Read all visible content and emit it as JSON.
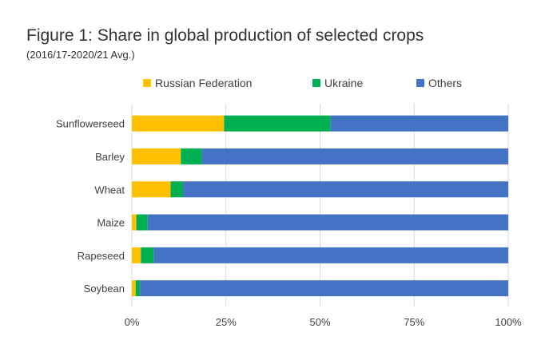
{
  "chart_data": {
    "type": "bar",
    "orientation": "horizontal",
    "stacked": true,
    "title": "Figure 1: Share in global production of selected crops",
    "subtitle": "(2016/17-2020/21 Avg.)",
    "categories": [
      "Sunflowerseed",
      "Barley",
      "Wheat",
      "Maize",
      "Rapeseed",
      "Soybean"
    ],
    "series": [
      {
        "name": "Russian Federation",
        "color": "#ffc000",
        "values": [
          24.5,
          13.0,
          10.3,
          1.2,
          2.4,
          1.0
        ]
      },
      {
        "name": "Ukraine",
        "color": "#00b050",
        "values": [
          28.3,
          5.6,
          3.3,
          3.0,
          3.4,
          1.2
        ]
      },
      {
        "name": "Others",
        "color": "#4472c4",
        "values": [
          47.2,
          81.4,
          86.4,
          95.8,
          94.2,
          97.8
        ]
      }
    ],
    "x_ticks": [
      "0%",
      "25%",
      "50%",
      "75%",
      "100%"
    ],
    "xlim": [
      0,
      100
    ],
    "grid": true,
    "legend_position": "top"
  }
}
